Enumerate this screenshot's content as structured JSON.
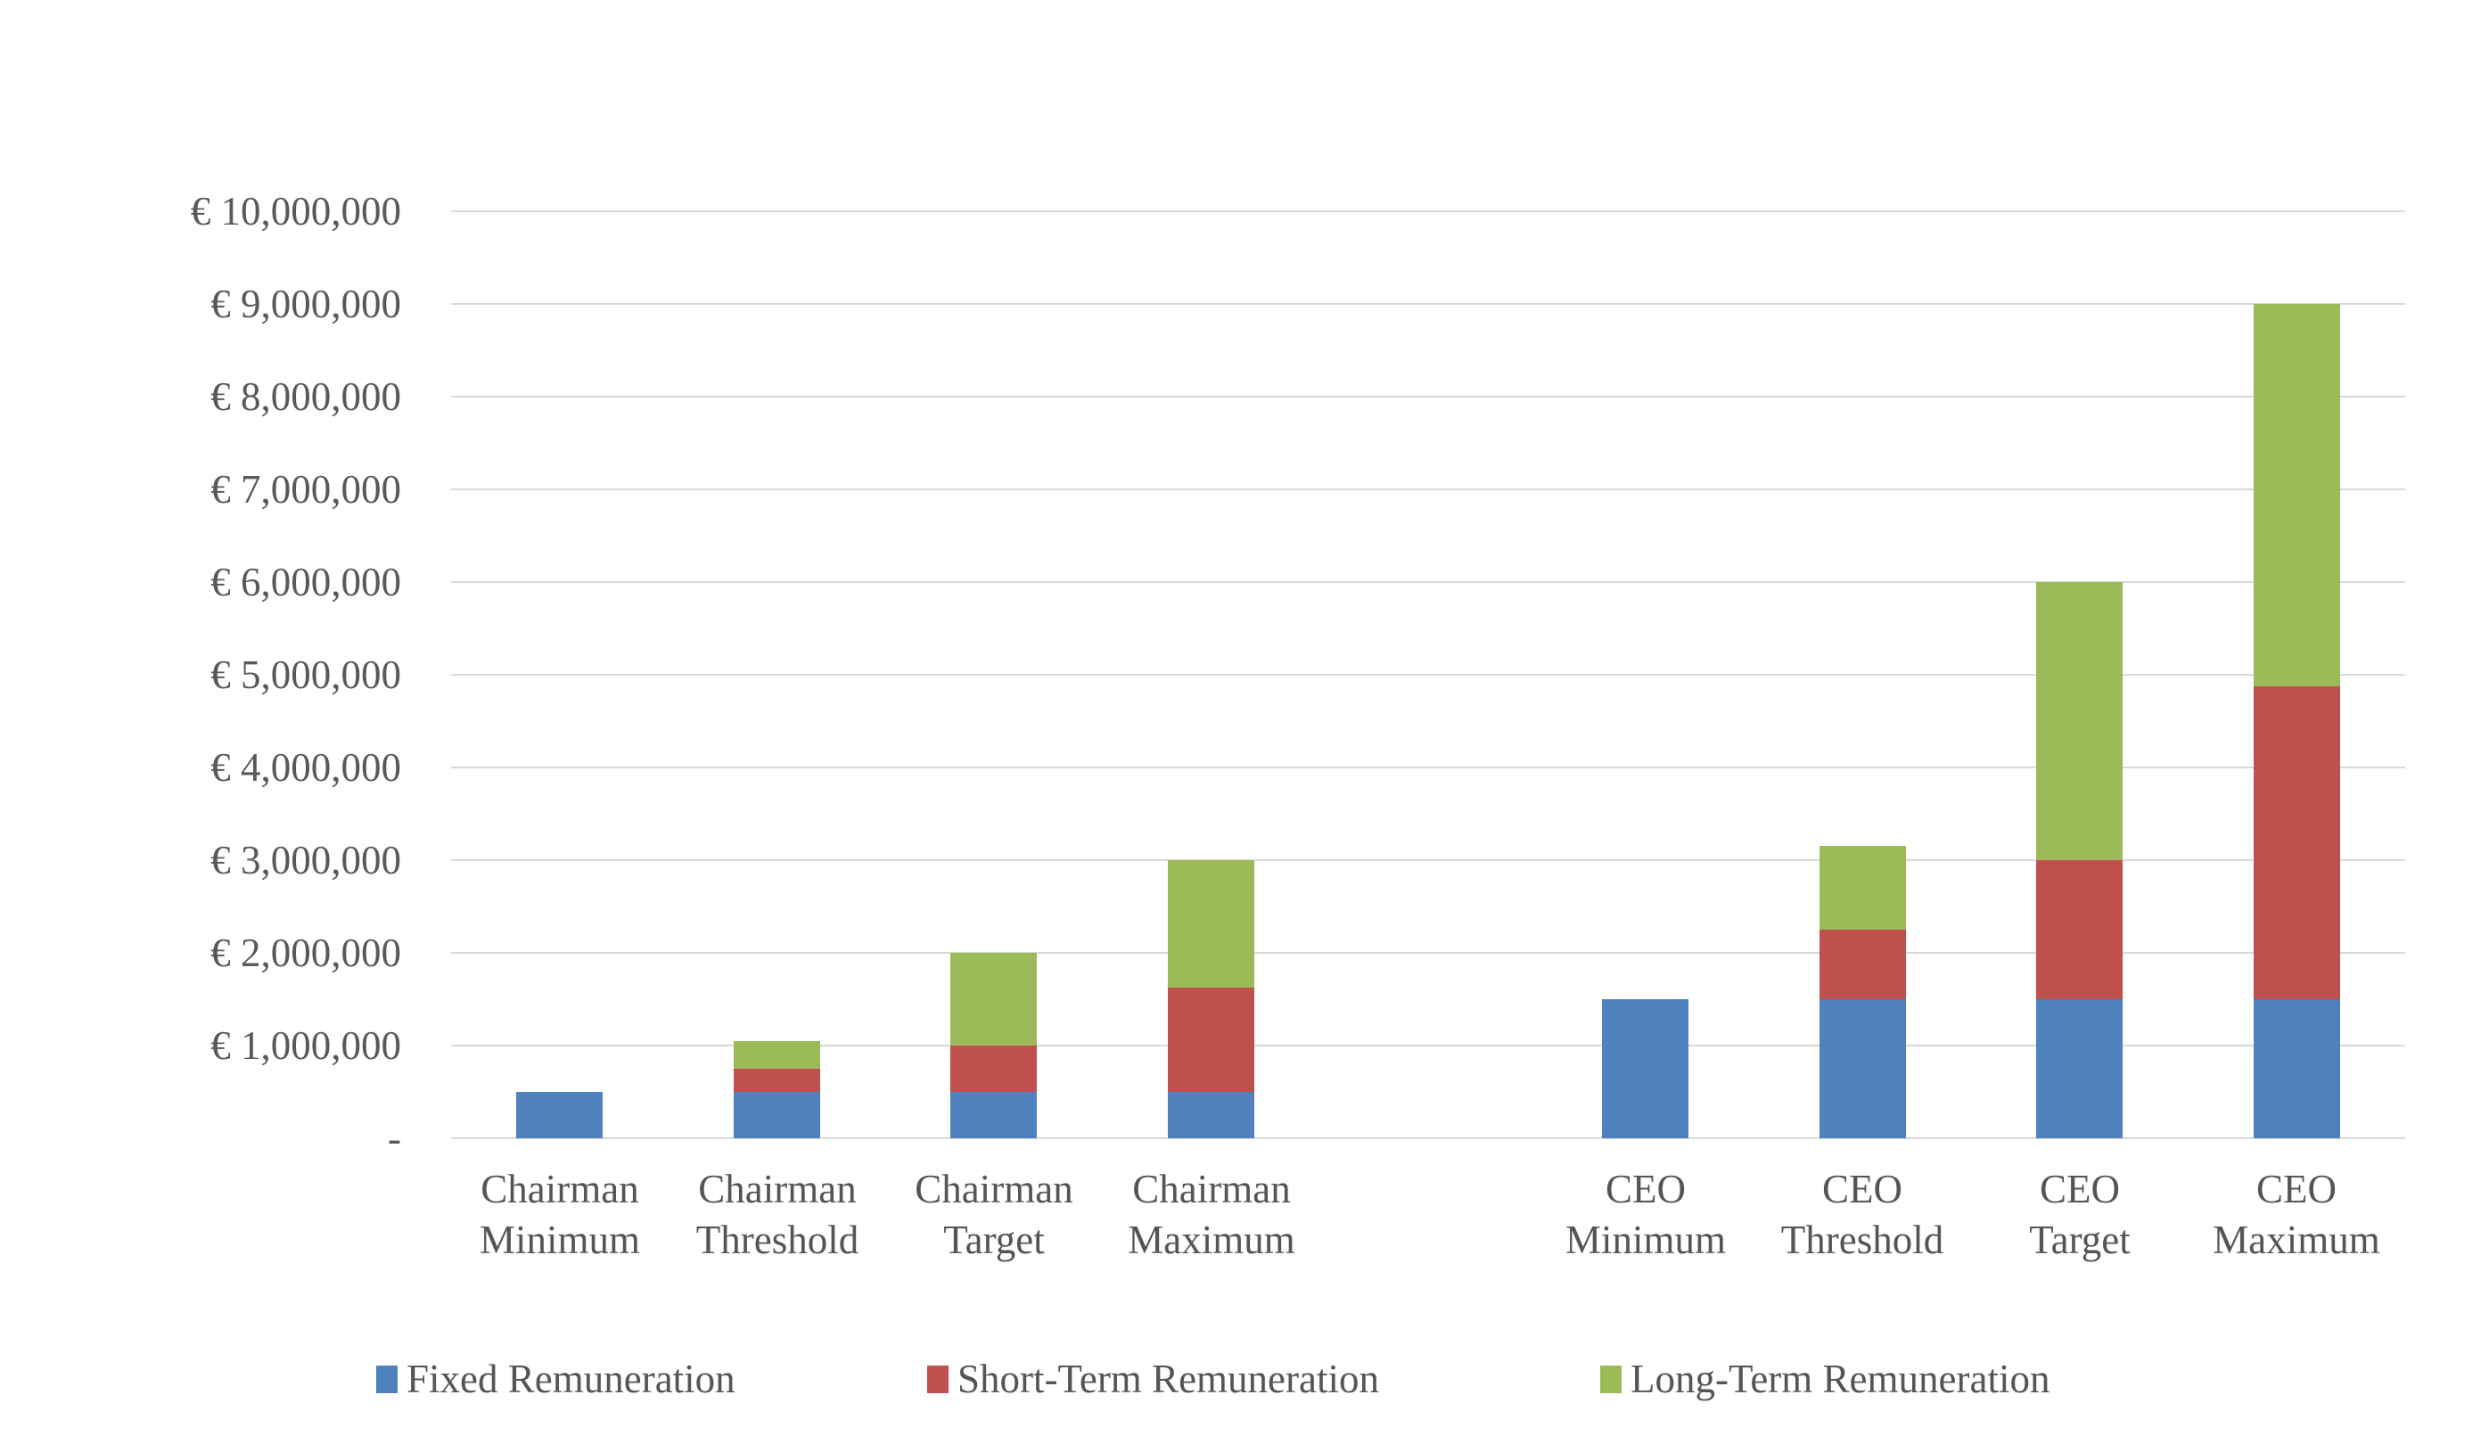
{
  "chart_data": {
    "type": "bar",
    "stacked": true,
    "title": "",
    "categories": [
      {
        "line1": "Chairman",
        "line2": "Minimum"
      },
      {
        "line1": "Chairman",
        "line2": "Threshold"
      },
      {
        "line1": "Chairman",
        "line2": "Target"
      },
      {
        "line1": "Chairman",
        "line2": "Maximum"
      },
      {
        "line1": "CEO",
        "line2": "Minimum"
      },
      {
        "line1": "CEO",
        "line2": "Threshold"
      },
      {
        "line1": "CEO",
        "line2": "Target"
      },
      {
        "line1": "CEO",
        "line2": "Maximum"
      }
    ],
    "series": [
      {
        "name": "Fixed Remuneration",
        "color": "#4F81BD",
        "values": [
          500000,
          500000,
          500000,
          500000,
          1500000,
          1500000,
          1500000,
          1500000
        ]
      },
      {
        "name": "Short-Term Remuneration",
        "color": "#C0504D",
        "values": [
          0,
          250000,
          500000,
          1125000,
          0,
          750000,
          1500000,
          3375000
        ]
      },
      {
        "name": "Long-Term Remuneration",
        "color": "#9BBB59",
        "values": [
          0,
          300000,
          1000000,
          1375000,
          0,
          900000,
          3000000,
          4125000
        ]
      }
    ],
    "stack_totals": [
      500000,
      1050000,
      2000000,
      3000000,
      1500000,
      3150000,
      6000000,
      9000000
    ],
    "y_axis": {
      "min": 0,
      "max": 10000000,
      "tick_step": 1000000,
      "tick_labels": [
        "-",
        "€ 1,000,000",
        "€ 2,000,000",
        "€ 3,000,000",
        "€ 4,000,000",
        "€ 5,000,000",
        "€ 6,000,000",
        "€ 7,000,000",
        "€ 8,000,000",
        "€ 9,000,000",
        "€ 10,000,000"
      ]
    },
    "layout_hints": {
      "grid": "horizontal-only",
      "gridline_color": "#d9d9d9",
      "gap_after_category_index": 3,
      "legend_position": "bottom",
      "background": "#ffffff",
      "bar_gap_ratio": 1.5
    }
  }
}
